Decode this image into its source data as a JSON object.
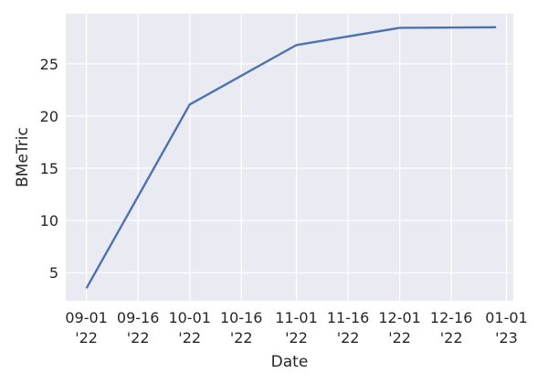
{
  "chart_data": {
    "type": "line",
    "title": "",
    "xlabel": "Date",
    "ylabel": "BMeTric",
    "x": [
      "2022-09-01",
      "2022-10-01",
      "2022-11-01",
      "2022-12-01",
      "2022-12-29"
    ],
    "series": [
      {
        "values": [
          3.5,
          21.1,
          26.8,
          28.45,
          28.5
        ],
        "color": "#4c72b0"
      }
    ],
    "xlim": [
      "2022-08-26",
      "2023-01-03"
    ],
    "ylim": [
      2.3,
      29.8
    ],
    "yticks": [
      5,
      10,
      15,
      20,
      25
    ],
    "xticks": [
      {
        "date": "2022-09-01",
        "label": [
          "09-01",
          "'22"
        ]
      },
      {
        "date": "2022-09-16",
        "label": [
          "09-16",
          "'22"
        ]
      },
      {
        "date": "2022-10-01",
        "label": [
          "10-01",
          "'22"
        ]
      },
      {
        "date": "2022-10-16",
        "label": [
          "10-16",
          "'22"
        ]
      },
      {
        "date": "2022-11-01",
        "label": [
          "11-01",
          "'22"
        ]
      },
      {
        "date": "2022-11-16",
        "label": [
          "11-16",
          "'22"
        ]
      },
      {
        "date": "2022-12-01",
        "label": [
          "12-01",
          "'22"
        ]
      },
      {
        "date": "2022-12-16",
        "label": [
          "12-16",
          "'22"
        ]
      },
      {
        "date": "2023-01-01",
        "label": [
          "01-01",
          "'23"
        ]
      }
    ],
    "grid": true,
    "background": "#eaeaf2"
  }
}
